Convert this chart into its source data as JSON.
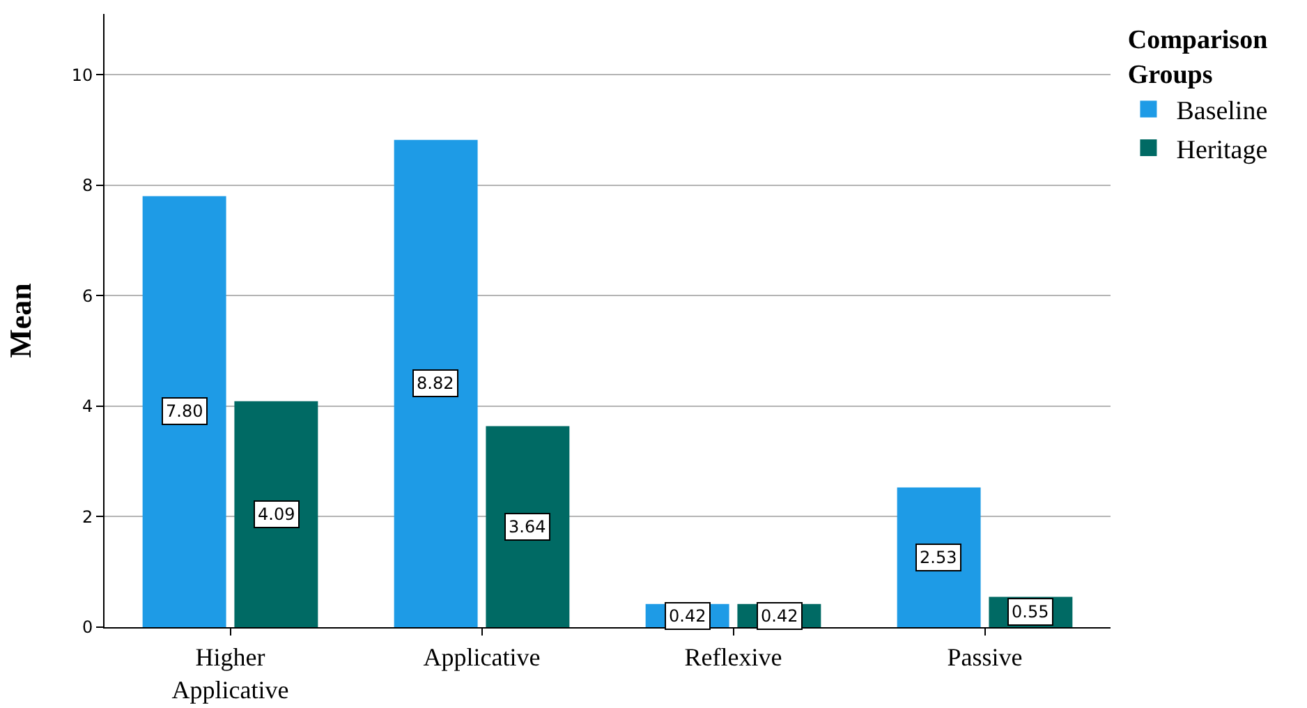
{
  "chart_data": {
    "type": "bar",
    "ylabel": "Mean",
    "legend_title": "Comparison Groups",
    "categories": [
      "Higher Applicative",
      "Applicative",
      "Reflexive",
      "Passive"
    ],
    "series": [
      {
        "name": "Baseline",
        "color": "#1e9be6",
        "values": [
          7.8,
          8.82,
          0.42,
          2.53
        ],
        "value_labels": [
          "7.80",
          "8.82",
          "0.42",
          "2.53"
        ]
      },
      {
        "name": "Heritage",
        "color": "#006a64",
        "values": [
          4.09,
          3.64,
          0.42,
          0.55
        ],
        "value_labels": [
          "4.09",
          "3.64",
          "0.42",
          "0.55"
        ]
      }
    ],
    "ylim": [
      0,
      11.1
    ],
    "yticks": [
      0,
      2,
      4,
      6,
      8,
      10
    ],
    "grid": "y",
    "legend": "top right"
  }
}
